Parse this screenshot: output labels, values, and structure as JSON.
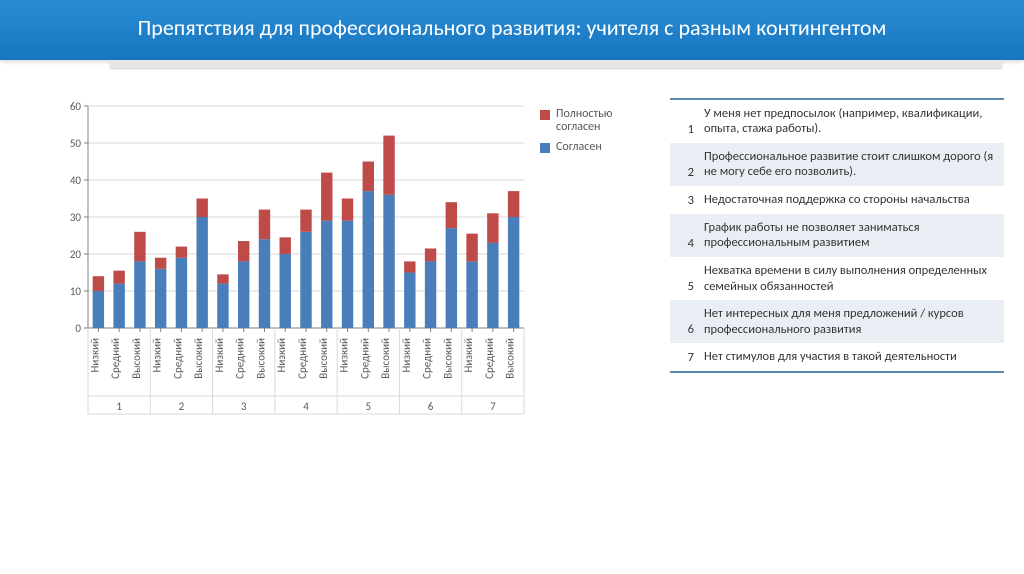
{
  "title": "Препятствия для  профессионального развития: учителя с разным контингентом",
  "chart": {
    "type": "stacked-bar",
    "ylim": [
      0,
      60
    ],
    "ytick_step": 10,
    "yticks": [
      0,
      10,
      20,
      30,
      40,
      50,
      60
    ],
    "grid_color": "#d9d9d9",
    "tick_color": "#808080",
    "axis_color": "#808080",
    "label_color": "#595959",
    "label_fontsize": 11,
    "bar_width_ratio": 0.55,
    "colors": {
      "agree": "#4a7ebb",
      "fully_agree": "#be4b48"
    },
    "subgroup_labels": [
      "Низкий",
      "Средний",
      "Высокий"
    ],
    "group_labels": [
      "1",
      "2",
      "3",
      "4",
      "5",
      "6",
      "7"
    ],
    "series": [
      {
        "group": "1",
        "values": [
          {
            "agree": 10,
            "fully_agree": 4
          },
          {
            "agree": 12,
            "fully_agree": 3.5
          },
          {
            "agree": 18,
            "fully_agree": 8
          }
        ]
      },
      {
        "group": "2",
        "values": [
          {
            "agree": 16,
            "fully_agree": 3
          },
          {
            "agree": 19,
            "fully_agree": 3
          },
          {
            "agree": 30,
            "fully_agree": 5
          }
        ]
      },
      {
        "group": "3",
        "values": [
          {
            "agree": 12,
            "fully_agree": 2.5
          },
          {
            "agree": 18,
            "fully_agree": 5.5
          },
          {
            "agree": 24,
            "fully_agree": 8
          }
        ]
      },
      {
        "group": "4",
        "values": [
          {
            "agree": 20,
            "fully_agree": 4.5
          },
          {
            "agree": 26,
            "fully_agree": 6
          },
          {
            "agree": 29,
            "fully_agree": 13
          }
        ]
      },
      {
        "group": "5",
        "values": [
          {
            "agree": 29,
            "fully_agree": 6
          },
          {
            "agree": 37,
            "fully_agree": 8
          },
          {
            "agree": 36,
            "fully_agree": 16
          }
        ]
      },
      {
        "group": "6",
        "values": [
          {
            "agree": 15,
            "fully_agree": 3
          },
          {
            "agree": 18,
            "fully_agree": 3.5
          },
          {
            "agree": 27,
            "fully_agree": 7
          }
        ]
      },
      {
        "group": "7",
        "values": [
          {
            "agree": 18,
            "fully_agree": 7.5
          },
          {
            "agree": 23,
            "fully_agree": 8
          },
          {
            "agree": 30,
            "fully_agree": 7
          }
        ]
      }
    ]
  },
  "legend": {
    "items": [
      {
        "key": "fully_agree",
        "label": "Полностью согласен",
        "color": "#be4b48"
      },
      {
        "key": "agree",
        "label": "Согласен",
        "color": "#4a7ebb"
      }
    ]
  },
  "table": {
    "header_border_color": "#5b8bb0",
    "shade_color": "#e8eef4",
    "rows": [
      {
        "n": "1",
        "text": "У меня нет предпосылок (например, квалификации, опыта, стажа работы).",
        "shade": false
      },
      {
        "n": "2",
        "text": "Профессиональное развитие стоит слишком дорого (я не могу себе его позволить).",
        "shade": true
      },
      {
        "n": "3",
        "text": "Недостаточная поддержка со стороны начальства",
        "shade": false
      },
      {
        "n": "4",
        "text": "График работы не позволяет заниматься профессиональным развитием",
        "shade": true
      },
      {
        "n": "5",
        "text": "Нехватка времени в силу выполнения определенных семейных обязанностей",
        "shade": false
      },
      {
        "n": "6",
        "text": "Нет интересных для меня предложений / курсов профессионального развития",
        "shade": true
      },
      {
        "n": "7",
        "text": "Нет стимулов для участия в такой деятельности",
        "shade": false
      }
    ]
  }
}
